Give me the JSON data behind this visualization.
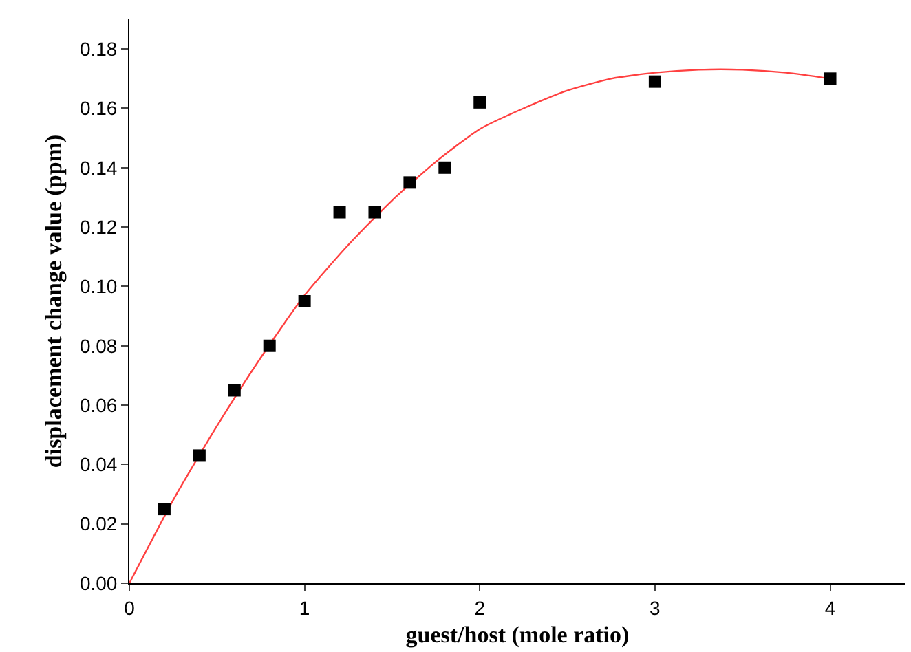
{
  "chart_data": {
    "type": "scatter",
    "xlabel": "guest/host (mole ratio)",
    "ylabel": "displacement change value (ppm)",
    "xlim": [
      0,
      4.43
    ],
    "ylim": [
      0,
      0.19
    ],
    "xticks": [
      0,
      1,
      2,
      3,
      4
    ],
    "yticks": [
      {
        "value": 0,
        "label": "0.00"
      },
      {
        "value": 0.02,
        "label": "0.02"
      },
      {
        "value": 0.04,
        "label": "0.04"
      },
      {
        "value": 0.06,
        "label": "0.06"
      },
      {
        "value": 0.08,
        "label": "0.08"
      },
      {
        "value": 0.1,
        "label": "0.10"
      },
      {
        "value": 0.12,
        "label": "0.12"
      },
      {
        "value": 0.14,
        "label": "0.14"
      },
      {
        "value": 0.16,
        "label": "0.16"
      },
      {
        "value": 0.18,
        "label": "0.18"
      }
    ],
    "series": [
      {
        "type": "line",
        "color": "#ff4040",
        "marker": "none",
        "line_style": "solid",
        "x": [
          0,
          0.25,
          0.5,
          0.75,
          1,
          1.25,
          1.5,
          1.75,
          2,
          2.25,
          2.5,
          2.75,
          3,
          3.25,
          3.5,
          3.75,
          4
        ],
        "values": [
          0,
          0.028,
          0.053,
          0.076,
          0.097,
          0.114,
          0.129,
          0.142,
          0.153,
          0.16,
          0.166,
          0.17,
          0.172,
          0.173,
          0.173,
          0.172,
          0.17
        ]
      },
      {
        "color": "#000000",
        "marker": "square",
        "x": [
          0.2,
          0.4,
          0.6,
          0.8,
          1.0,
          1.2,
          1.4,
          1.6,
          1.8,
          2.0,
          3.0,
          4.0
        ],
        "values": [
          0.025,
          0.043,
          0.065,
          0.08,
          0.095,
          0.125,
          0.125,
          0.135,
          0.14,
          0.162,
          0.169,
          0.17
        ]
      }
    ]
  }
}
